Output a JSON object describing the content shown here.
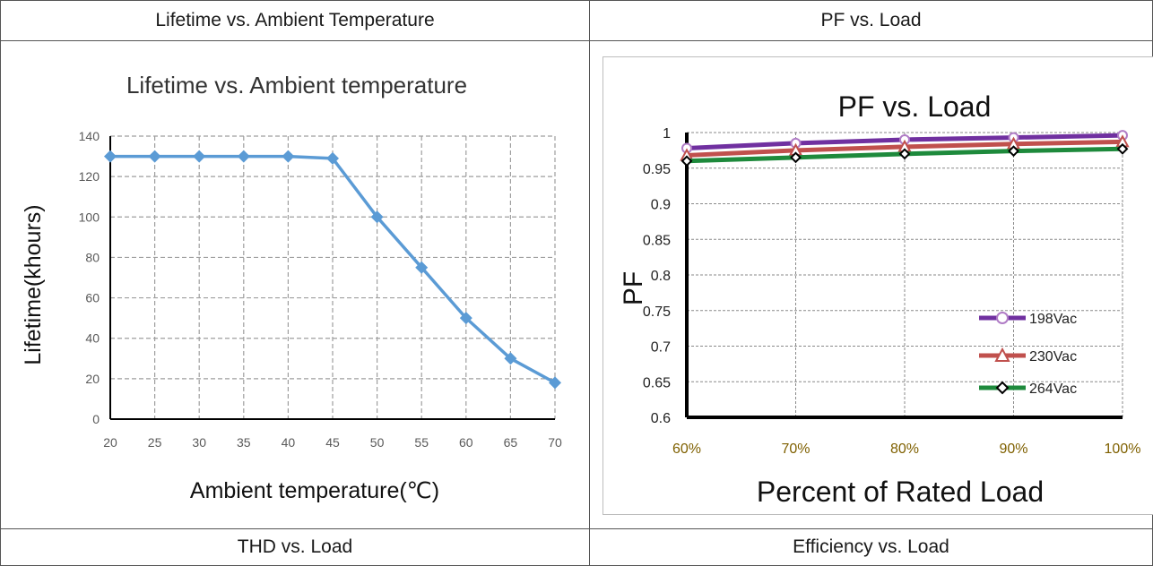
{
  "table": {
    "headers": [
      "Lifetime vs. Ambient Temperature",
      "PF vs. Load"
    ],
    "footers": [
      "THD vs. Load",
      "Efficiency vs. Load"
    ]
  },
  "chart_data": [
    {
      "type": "line",
      "title": "Lifetime vs. Ambient temperature",
      "xlabel": "Ambient temperature(℃)",
      "ylabel": "Lifetime(khours)",
      "x": [
        20,
        25,
        30,
        35,
        40,
        45,
        50,
        55,
        60,
        65,
        70
      ],
      "xlim": [
        20,
        70
      ],
      "ylim": [
        0,
        140
      ],
      "x_ticks": [
        "20",
        "25",
        "30",
        "35",
        "40",
        "45",
        "50",
        "55",
        "60",
        "65",
        "70"
      ],
      "y_ticks": [
        "0",
        "20",
        "40",
        "60",
        "80",
        "100",
        "120",
        "140"
      ],
      "grid": true,
      "series": [
        {
          "values": [
            130,
            130,
            130,
            130,
            130,
            129,
            100,
            75,
            50,
            30,
            18
          ],
          "color": "#5b9bd5",
          "marker": "diamond"
        }
      ]
    },
    {
      "type": "line",
      "title": "PF vs. Load",
      "xlabel": "Percent of Rated Load",
      "ylabel": "PF",
      "categories": [
        "60%",
        "70%",
        "80%",
        "90%",
        "100%"
      ],
      "ylim": [
        0.6,
        1
      ],
      "y_ticks": [
        "0.6",
        "0.65",
        "0.7",
        "0.75",
        "0.8",
        "0.85",
        "0.9",
        "0.95",
        "1"
      ],
      "grid": true,
      "legend": "right",
      "series": [
        {
          "name": "198Vac",
          "values": [
            0.978,
            0.985,
            0.99,
            0.993,
            0.996
          ],
          "color": "#7030a0",
          "marker": "circle",
          "marker_color": "#b07cc6"
        },
        {
          "name": "230Vac",
          "values": [
            0.968,
            0.975,
            0.98,
            0.984,
            0.987
          ],
          "color": "#c0504d",
          "marker": "triangle",
          "marker_color": "#c0504d"
        },
        {
          "name": "264Vac",
          "values": [
            0.96,
            0.965,
            0.97,
            0.974,
            0.977
          ],
          "color": "#1e8a3c",
          "marker": "diamond",
          "marker_color": "#000000"
        }
      ]
    }
  ]
}
